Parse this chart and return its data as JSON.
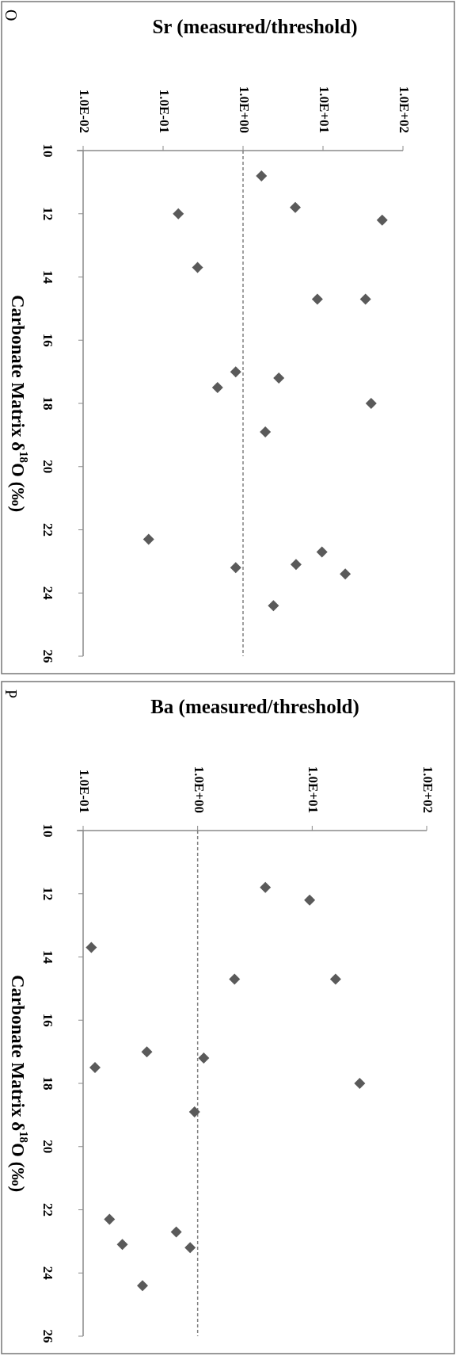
{
  "chart_data": [
    {
      "type": "scatter",
      "xlabel": "Sr (measured/threshold)",
      "ylabel": "Carbonate Matrix δ$^{18}$O (‰)",
      "annotations": [
        "O"
      ],
      "log": "x",
      "marker": "diamond",
      "color": "#5a5a5a",
      "x": [
        1.7,
        4.5,
        55,
        0.155,
        0.27,
        8.5,
        34,
        0.81,
        2.8,
        0.48,
        40,
        1.9,
        0.066,
        9.7,
        0.81,
        4.6,
        19,
        2.4
      ],
      "values": [
        10.8,
        11.8,
        12.2,
        12.0,
        13.7,
        14.7,
        14.7,
        17.0,
        17.2,
        17.5,
        18.0,
        18.9,
        22.3,
        22.7,
        23.2,
        23.1,
        23.4,
        24.4
      ],
      "xlim": [
        0.01,
        100
      ],
      "xticks": [
        {
          "value": 0.01,
          "label": "1.0E-02"
        },
        {
          "value": 0.1,
          "label": "1.0E-01"
        },
        {
          "value": 1,
          "label": "1.0E+00"
        },
        {
          "value": 10,
          "label": "1.0E+01"
        },
        {
          "value": 100,
          "label": "1.0E+02"
        }
      ],
      "ylim": [
        26,
        10
      ],
      "yticks": [
        10,
        12,
        14,
        16,
        18,
        20,
        22,
        24,
        26
      ],
      "ref_lines": [
        {
          "axis": "x",
          "value": 1,
          "line_style": "dashed",
          "color": "#808080"
        }
      ]
    },
    {
      "type": "scatter",
      "xlabel": "Ba (measured/threshold)",
      "ylabel": "Carbonate Matrix δ$^{18}$O (‰)",
      "annotations": [
        "P"
      ],
      "log": "x",
      "marker": "diamond",
      "color": "#5a5a5a",
      "x": [
        3.9,
        9.5,
        0.118,
        2.1,
        16,
        0.36,
        1.13,
        0.127,
        26,
        0.94,
        0.17,
        0.65,
        0.22,
        0.86,
        0.33
      ],
      "values": [
        11.8,
        12.2,
        13.7,
        14.7,
        14.7,
        17.0,
        17.2,
        17.5,
        18.0,
        18.9,
        22.3,
        22.7,
        23.1,
        23.2,
        24.4
      ],
      "xlim": [
        0.1,
        100
      ],
      "xticks": [
        {
          "value": 0.1,
          "label": "1.0E-01"
        },
        {
          "value": 1,
          "label": "1.0E+00"
        },
        {
          "value": 10,
          "label": "1.0E+01"
        },
        {
          "value": 100,
          "label": "1.0E+02"
        }
      ],
      "ylim": [
        26,
        10
      ],
      "yticks": [
        10,
        12,
        14,
        16,
        18,
        20,
        22,
        24,
        26
      ],
      "ref_lines": [
        {
          "axis": "x",
          "value": 1,
          "line_style": "dashed",
          "color": "#808080"
        }
      ]
    }
  ]
}
